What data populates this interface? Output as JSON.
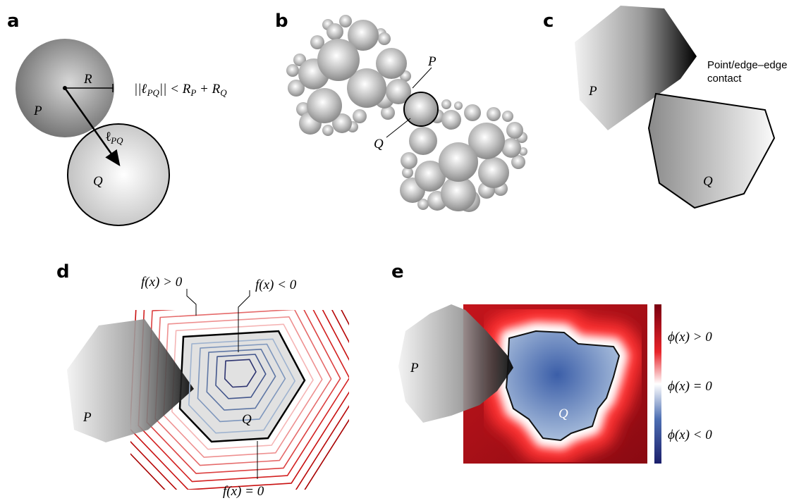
{
  "panels": {
    "a": {
      "label": "a",
      "radius": "R",
      "p": "P",
      "q": "Q",
      "vector": [
        "ℓ",
        "PQ"
      ],
      "condition": [
        "||",
        "ℓ",
        "PQ",
        "|| < ",
        "R",
        "P",
        " + ",
        "R",
        "Q"
      ]
    },
    "b": {
      "label": "b",
      "p": "P",
      "q": "Q"
    },
    "c": {
      "label": "c",
      "p": "P",
      "q": "Q",
      "note": [
        "Point/edge–edge",
        "contact"
      ]
    },
    "d": {
      "label": "d",
      "p": "P",
      "q": "Q",
      "outside": "f(x) > 0",
      "inside": "f(x) < 0",
      "boundary": "f(x) = 0"
    },
    "e": {
      "label": "e",
      "p": "P",
      "q": "Q",
      "positive": "ϕ(x) > 0",
      "zero": "ϕ(x) = 0",
      "negative": "ϕ(x) < 0"
    }
  }
}
